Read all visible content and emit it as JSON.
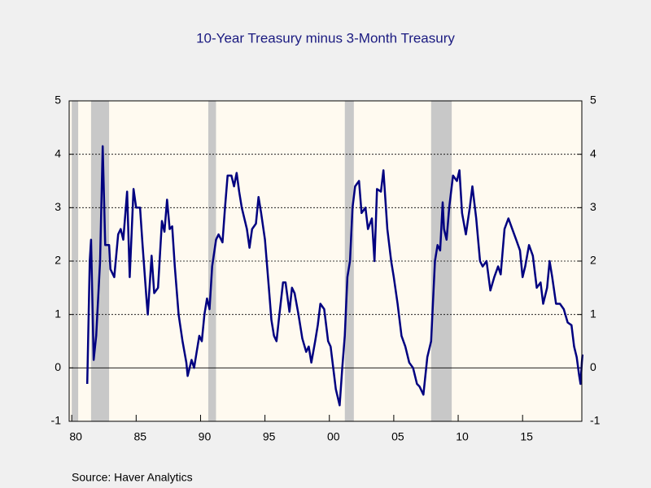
{
  "chart_data": {
    "type": "line",
    "title": "10-Year Treasury minus 3-Month Treasury",
    "source": "Source:  Haver Analytics",
    "xlim": [
      1979.8,
      2019.6
    ],
    "xticks": [
      {
        "value": 1980,
        "label": "80"
      },
      {
        "value": 1985,
        "label": "85"
      },
      {
        "value": 1990,
        "label": "90"
      },
      {
        "value": 1995,
        "label": "95"
      },
      {
        "value": 2000,
        "label": "00"
      },
      {
        "value": 2005,
        "label": "05"
      },
      {
        "value": 2010,
        "label": "10"
      },
      {
        "value": 2015,
        "label": "15"
      }
    ],
    "ylim": [
      -1,
      5
    ],
    "yticks": [
      -1,
      0,
      1,
      2,
      3,
      4,
      5
    ],
    "y2lim": [
      -1,
      5
    ],
    "y2ticks": [
      -1,
      0,
      1,
      2,
      3,
      4,
      5
    ],
    "grid": true,
    "recession_color": "#c8c8c8",
    "recessions": [
      [
        1980.0,
        1980.5
      ],
      [
        1981.5,
        1982.9
      ],
      [
        1990.6,
        1991.2
      ],
      [
        2001.2,
        2001.9
      ],
      [
        2007.9,
        2009.5
      ]
    ],
    "series": [
      {
        "color": "#000080",
        "x": [
          1981.2,
          1981.4,
          1981.5,
          1981.7,
          1981.9,
          1982.2,
          1982.4,
          1982.6,
          1982.9,
          1983.0,
          1983.3,
          1983.6,
          1983.8,
          1984.0,
          1984.3,
          1984.5,
          1984.8,
          1985.0,
          1985.3,
          1985.5,
          1985.8,
          1985.9,
          1986.2,
          1986.4,
          1986.7,
          1987.0,
          1987.2,
          1987.4,
          1987.6,
          1987.8,
          1988.0,
          1988.3,
          1988.6,
          1988.9,
          1989.0,
          1989.3,
          1989.5,
          1989.7,
          1989.9,
          1990.1,
          1990.3,
          1990.5,
          1990.7,
          1990.9,
          1991.2,
          1991.4,
          1991.7,
          1991.9,
          1992.1,
          1992.4,
          1992.6,
          1992.8,
          1993.0,
          1993.2,
          1993.6,
          1993.8,
          1994.0,
          1994.3,
          1994.5,
          1994.7,
          1995.0,
          1995.3,
          1995.5,
          1995.7,
          1995.9,
          1996.1,
          1996.4,
          1996.6,
          1996.9,
          1997.1,
          1997.3,
          1997.6,
          1997.9,
          1998.2,
          1998.4,
          1998.6,
          1998.9,
          1999.1,
          1999.3,
          1999.6,
          1999.9,
          2000.1,
          2000.3,
          2000.5,
          2000.8,
          2001.0,
          2001.2,
          2001.4,
          2001.6,
          2001.8,
          2002.0,
          2002.3,
          2002.5,
          2002.8,
          2003.0,
          2003.3,
          2003.5,
          2003.7,
          2004.0,
          2004.2,
          2004.5,
          2004.8,
          2005.0,
          2005.3,
          2005.6,
          2005.9,
          2006.2,
          2006.5,
          2006.8,
          2007.0,
          2007.3,
          2007.6,
          2007.9,
          2008.2,
          2008.4,
          2008.6,
          2008.8,
          2008.9,
          2009.1,
          2009.3,
          2009.6,
          2009.9,
          2010.1,
          2010.3,
          2010.6,
          2010.9,
          2011.1,
          2011.4,
          2011.7,
          2011.9,
          2012.2,
          2012.5,
          2012.8,
          2013.1,
          2013.3,
          2013.6,
          2013.9,
          2014.2,
          2014.5,
          2014.8,
          2015.0,
          2015.2,
          2015.5,
          2015.8,
          2016.1,
          2016.4,
          2016.6,
          2016.9,
          2017.1,
          2017.3,
          2017.6,
          2017.9,
          2018.2,
          2018.5,
          2018.8,
          2019.0,
          2019.2,
          2019.4,
          2019.5,
          2019.6,
          2019.65
        ],
        "values": [
          -0.3,
          2.0,
          2.4,
          0.15,
          0.6,
          2.0,
          4.15,
          2.3,
          2.3,
          1.85,
          1.7,
          2.5,
          2.6,
          2.4,
          3.3,
          1.7,
          3.35,
          3.0,
          3.0,
          2.3,
          1.3,
          1.0,
          2.1,
          1.4,
          1.5,
          2.75,
          2.55,
          3.15,
          2.6,
          2.65,
          1.9,
          1.0,
          0.5,
          0.1,
          -0.15,
          0.15,
          0.0,
          0.3,
          0.6,
          0.5,
          1.0,
          1.3,
          1.1,
          1.9,
          2.4,
          2.5,
          2.35,
          3.0,
          3.6,
          3.6,
          3.4,
          3.65,
          3.3,
          3.0,
          2.6,
          2.25,
          2.6,
          2.7,
          3.2,
          2.9,
          2.4,
          1.5,
          0.9,
          0.6,
          0.5,
          0.95,
          1.6,
          1.6,
          1.05,
          1.5,
          1.4,
          1.0,
          0.55,
          0.3,
          0.4,
          0.1,
          0.5,
          0.8,
          1.2,
          1.1,
          0.5,
          0.4,
          0.0,
          -0.4,
          -0.7,
          0.0,
          0.6,
          1.7,
          2.0,
          3.0,
          3.4,
          3.5,
          2.9,
          3.0,
          2.6,
          2.8,
          2.0,
          3.35,
          3.3,
          3.7,
          2.6,
          2.0,
          1.7,
          1.2,
          0.6,
          0.4,
          0.1,
          0.0,
          -0.3,
          -0.35,
          -0.5,
          0.2,
          0.5,
          2.0,
          2.3,
          2.2,
          3.1,
          2.6,
          2.4,
          3.0,
          3.6,
          3.5,
          3.7,
          2.9,
          2.5,
          3.0,
          3.4,
          2.8,
          2.0,
          1.9,
          2.0,
          1.45,
          1.7,
          1.9,
          1.75,
          2.6,
          2.8,
          2.6,
          2.4,
          2.2,
          1.7,
          1.9,
          2.3,
          2.1,
          1.5,
          1.6,
          1.2,
          1.5,
          2.0,
          1.7,
          1.2,
          1.2,
          1.1,
          0.85,
          0.8,
          0.4,
          0.2,
          -0.15,
          -0.3,
          0.1,
          0.25
        ]
      }
    ]
  }
}
